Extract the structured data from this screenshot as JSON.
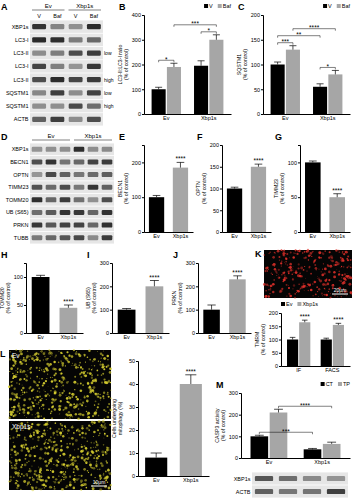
{
  "chart_data": [
    {
      "panel": "B",
      "type": "bar",
      "y_label": [
        "LC3-II:LC3-I ratio",
        "(% of control)"
      ],
      "categories": [
        "Ev",
        "Xbp1s"
      ],
      "series": [
        {
          "name": "V",
          "color": "#000000",
          "values": [
            100,
            195
          ],
          "errors": [
            8,
            20
          ]
        },
        {
          "name": "Baf",
          "color": "#a6a6a6",
          "values": [
            190,
            300
          ],
          "errors": [
            15,
            20
          ]
        }
      ],
      "ylim": [
        0,
        400
      ],
      "yticks": [
        0,
        100,
        200,
        300,
        400
      ],
      "legend": "top-right",
      "annotations": [
        {
          "text": "*",
          "bars": [
            [
              0,
              0
            ],
            [
              1,
              0
            ]
          ]
        },
        {
          "text": "*",
          "bars": [
            [
              0,
              1
            ],
            [
              1,
              1
            ]
          ]
        },
        {
          "text": "***",
          "bars": [
            [
              1,
              0
            ],
            [
              1,
              1
            ]
          ]
        }
      ]
    },
    {
      "panel": "C",
      "type": "bar",
      "y_label": [
        "SQSTM1",
        "(% of control)"
      ],
      "categories": [
        "Ev",
        "Xbp1s"
      ],
      "series": [
        {
          "name": "V",
          "color": "#000000",
          "values": [
            100,
            55
          ],
          "errors": [
            5,
            6
          ]
        },
        {
          "name": "Baf",
          "color": "#a6a6a6",
          "values": [
            130,
            80
          ],
          "errors": [
            8,
            8
          ]
        }
      ],
      "ylim": [
        0,
        200
      ],
      "yticks": [
        0,
        50,
        100,
        150,
        200
      ],
      "legend": "top-right",
      "annotations": [
        {
          "text": "***",
          "bars": [
            [
              0,
              0
            ],
            [
              1,
              0
            ]
          ]
        },
        {
          "text": "*",
          "bars": [
            [
              0,
              1
            ],
            [
              1,
              1
            ]
          ]
        },
        {
          "text": "**",
          "bars": [
            [
              0,
              0
            ],
            [
              0,
              1
            ]
          ]
        },
        {
          "text": "****",
          "bars": [
            [
              1,
              0
            ],
            [
              1,
              1
            ]
          ]
        }
      ]
    },
    {
      "panel": "E",
      "type": "bar",
      "y_label": [
        "BECN1",
        "(% of control)"
      ],
      "categories": [
        "Ev",
        "Xbp1s"
      ],
      "values": [
        100,
        185
      ],
      "errors": [
        5,
        15
      ],
      "colors": [
        "#000000",
        "#a6a6a6"
      ],
      "ylim": [
        0,
        250
      ],
      "yticks": [
        0,
        100,
        200
      ],
      "annotations": [
        {
          "text": "****",
          "bars": [
            [
              0,
              1
            ]
          ]
        }
      ]
    },
    {
      "panel": "F",
      "type": "bar",
      "y_label": [
        "OPTN",
        "(% of control)"
      ],
      "categories": [
        "Ev",
        "Xbp1s"
      ],
      "values": [
        100,
        150
      ],
      "errors": [
        3,
        6
      ],
      "colors": [
        "#000000",
        "#a6a6a6"
      ],
      "ylim": [
        0,
        200
      ],
      "yticks": [
        0,
        50,
        100,
        150,
        200
      ],
      "annotations": [
        {
          "text": "****",
          "bars": [
            [
              0,
              1
            ]
          ]
        }
      ]
    },
    {
      "panel": "G",
      "type": "bar",
      "y_label": [
        "TIMM23",
        "(% of control)"
      ],
      "categories": [
        "Ev",
        "Xbp1s"
      ],
      "values": [
        100,
        50
      ],
      "errors": [
        2,
        5
      ],
      "colors": [
        "#000000",
        "#a6a6a6"
      ],
      "ylim": [
        0,
        125
      ],
      "yticks": [
        0,
        50,
        100
      ],
      "annotations": [
        {
          "text": "****",
          "bars": [
            [
              0,
              1
            ]
          ]
        }
      ]
    },
    {
      "panel": "H",
      "type": "bar",
      "y_label": [
        "TOMM20",
        "(% of control)"
      ],
      "categories": [
        "Ev",
        "Xbp1s"
      ],
      "values": [
        100,
        45
      ],
      "errors": [
        3,
        5
      ],
      "colors": [
        "#000000",
        "#a6a6a6"
      ],
      "ylim": [
        0,
        125
      ],
      "yticks": [
        0,
        50,
        100
      ],
      "annotations": [
        {
          "text": "****",
          "bars": [
            [
              0,
              1
            ]
          ]
        }
      ]
    },
    {
      "panel": "I",
      "type": "bar",
      "y_label": [
        "UB (S65)",
        "(% of control)"
      ],
      "categories": [
        "Ev",
        "Xbp1s"
      ],
      "values": [
        100,
        200
      ],
      "errors": [
        5,
        25
      ],
      "colors": [
        "#000000",
        "#a6a6a6"
      ],
      "ylim": [
        0,
        300
      ],
      "yticks": [
        0,
        100,
        200,
        300
      ],
      "annotations": [
        {
          "text": "****",
          "bars": [
            [
              0,
              1
            ]
          ]
        }
      ]
    },
    {
      "panel": "J",
      "type": "bar",
      "y_label": [
        "PRKN",
        "(% of control)"
      ],
      "categories": [
        "Ev",
        "Xbp1s"
      ],
      "values": [
        100,
        230
      ],
      "errors": [
        20,
        15
      ],
      "colors": [
        "#000000",
        "#a6a6a6"
      ],
      "ylim": [
        0,
        300
      ],
      "yticks": [
        0,
        100,
        200,
        300
      ],
      "annotations": [
        {
          "text": "****",
          "bars": [
            [
              0,
              1
            ]
          ]
        }
      ]
    },
    {
      "type": "bar",
      "y_label": [
        "TMRM",
        "(% of control)"
      ],
      "categories": [
        "IF",
        "FACS"
      ],
      "series": [
        {
          "name": "Ev",
          "color": "#000000",
          "values": [
            100,
            100
          ],
          "errors": [
            8,
            5
          ]
        },
        {
          "name": "Xbp1s",
          "color": "#a6a6a6",
          "values": [
            165,
            155
          ],
          "errors": [
            8,
            6
          ]
        }
      ],
      "ylim": [
        0,
        200
      ],
      "yticks": [
        0,
        50,
        100,
        150,
        200
      ],
      "legend": "top-left",
      "annotations": [
        {
          "text": "****",
          "bars": [
            [
              1,
              0
            ]
          ]
        },
        {
          "text": "****",
          "bars": [
            [
              1,
              1
            ]
          ]
        }
      ]
    },
    {
      "type": "bar",
      "y_label": [
        "Cells undergoing",
        "mitophagy (%)"
      ],
      "categories": [
        "Ev",
        "Xbp1s"
      ],
      "values": [
        8,
        40
      ],
      "errors": [
        2,
        4
      ],
      "colors": [
        "#000000",
        "#a6a6a6"
      ],
      "ylim": [
        0,
        50
      ],
      "yticks": [
        0,
        10,
        20,
        30,
        40,
        50
      ],
      "annotations": [
        {
          "text": "****",
          "bars": [
            [
              0,
              1
            ]
          ]
        }
      ]
    },
    {
      "panel": "M",
      "type": "bar",
      "y_label": [
        "CASP3 activity",
        "(% of control)"
      ],
      "categories": [
        "Ev",
        "Xbp1s"
      ],
      "series": [
        {
          "name": "CT",
          "color": "#000000",
          "values": [
            100,
            40
          ],
          "errors": [
            5,
            4
          ]
        },
        {
          "name": "TP",
          "color": "#a6a6a6",
          "values": [
            210,
            65
          ],
          "errors": [
            15,
            8
          ]
        }
      ],
      "ylim": [
        0,
        300
      ],
      "yticks": [
        0,
        100,
        200,
        300
      ],
      "legend": "top-right",
      "annotations": [
        {
          "text": "***",
          "bars": [
            [
              0,
              0
            ],
            [
              0,
              1
            ]
          ]
        },
        {
          "text": "****",
          "bars": [
            [
              1,
              0
            ],
            [
              1,
              1
            ]
          ]
        }
      ]
    }
  ],
  "blots": [
    {
      "panel": "A",
      "groups": [
        "Ev",
        "Xbp1s"
      ],
      "lanes": [
        "V",
        "Baf",
        "V",
        "Baf"
      ],
      "rows": [
        {
          "label": "XBP1s"
        },
        {
          "label": "LC3-I"
        },
        {
          "label": "LC3-II",
          "exposure": "low"
        },
        {
          "label": "LC3-I"
        },
        {
          "label": "LC3-II",
          "exposure": "high"
        },
        {
          "label": "SQSTM1",
          "exposure": "low"
        },
        {
          "label": "SQSTM1",
          "exposure": "high"
        },
        {
          "label": "ACTB"
        }
      ]
    },
    {
      "panel": "D",
      "groups": [
        "Ev",
        "Xbp1s"
      ],
      "rows": [
        {
          "label": "XBP1s"
        },
        {
          "label": "BECN1"
        },
        {
          "label": "OPTN"
        },
        {
          "label": "TIMM23"
        },
        {
          "label": "TOMM20"
        },
        {
          "label": "UB (S65)"
        },
        {
          "label": "PRKN"
        },
        {
          "label": "TUBB"
        }
      ]
    },
    {
      "rows": [
        {
          "label": "XBP1s"
        },
        {
          "label": "ACTB"
        }
      ]
    }
  ],
  "images": [
    {
      "panel": "K",
      "scale_bar": "20μm"
    },
    {
      "panel": "L",
      "labels": [
        "Ev",
        "Xbp1s"
      ],
      "scale_bar": "10μm"
    }
  ]
}
